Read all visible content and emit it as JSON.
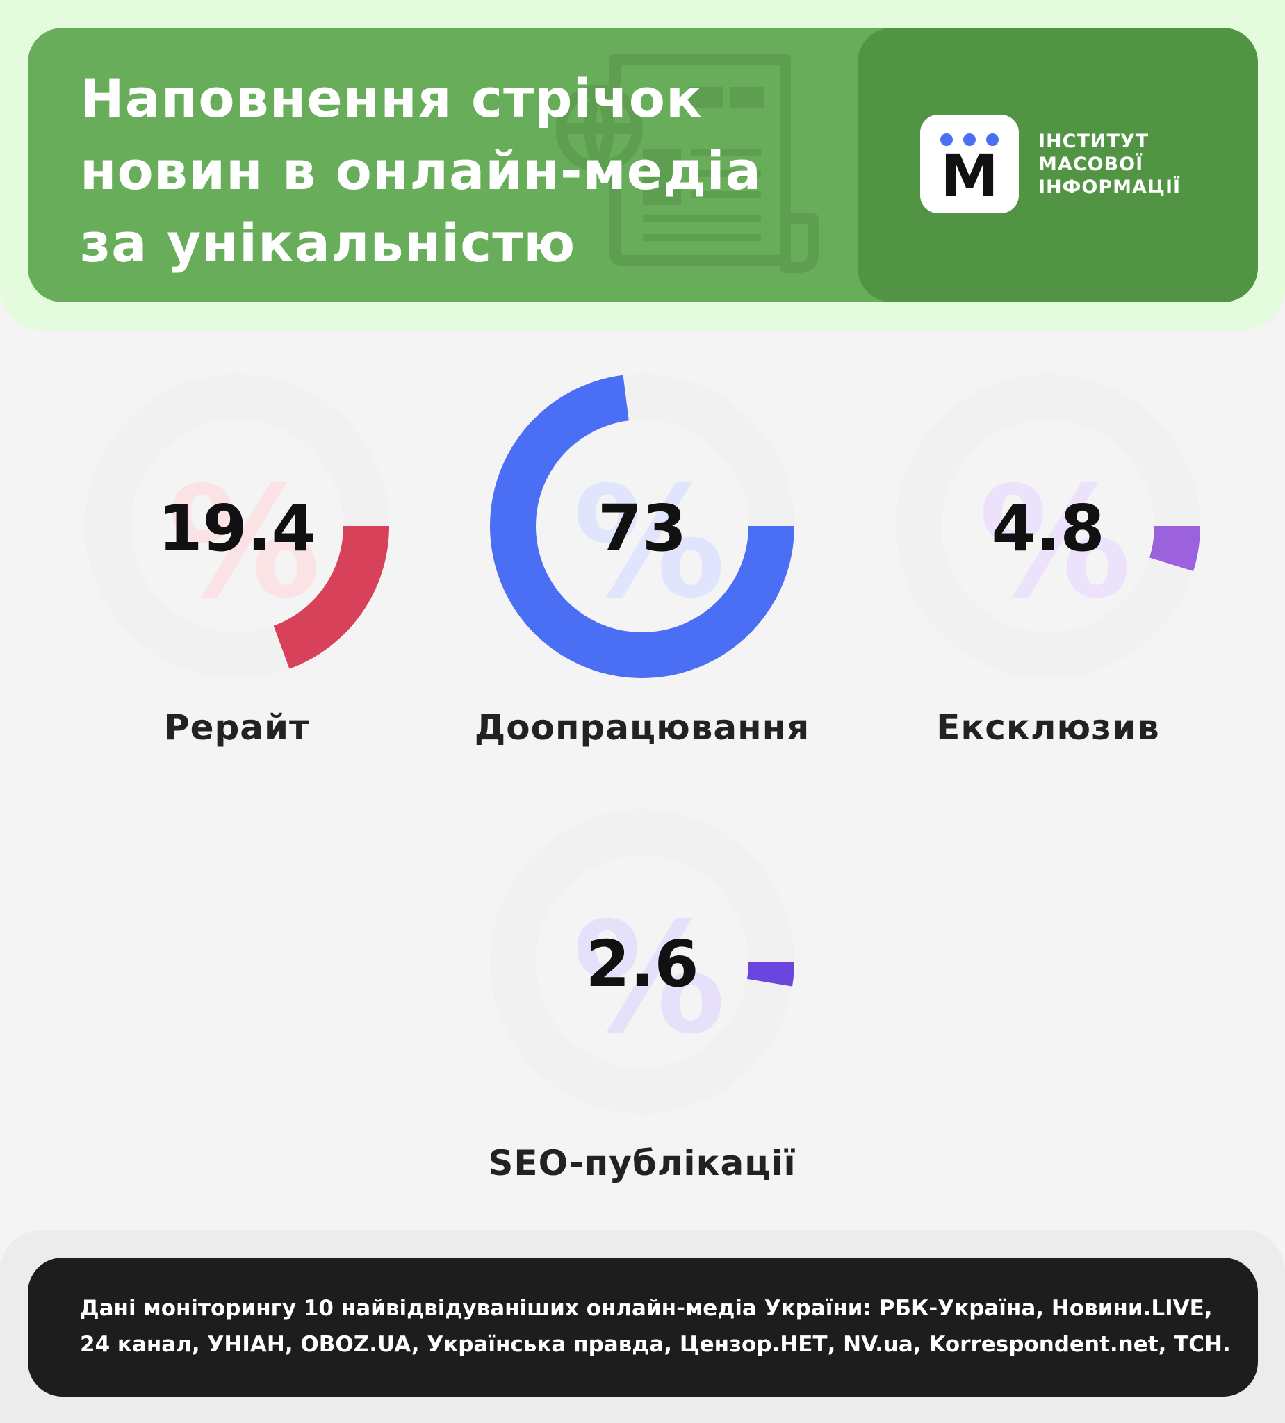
{
  "header": {
    "title_lines": [
      "Наповнення стрічок",
      "новин в онлайн-медіа",
      "за унікальністю"
    ],
    "icon": "newspaper-globe-icon",
    "logo": {
      "mark_letter": "M",
      "name_lines": [
        "ІНСТИТУТ",
        "МАСОВОЇ",
        "ІНФОРМАЦІЇ"
      ]
    }
  },
  "chart_data": {
    "type": "pie",
    "unit": "%",
    "items": [
      {
        "label": "Рерайт",
        "value": 19.4,
        "display": "19.4",
        "color": "#d8415a",
        "watermark_color": "#fbe2e4"
      },
      {
        "label": "Доопрацювання",
        "value": 73,
        "display": "73",
        "color": "#4a6ff5",
        "watermark_color": "#e0e5fd"
      },
      {
        "label": "Ексклюзив",
        "value": 4.8,
        "display": "4.8",
        "color": "#9c62de",
        "watermark_color": "#ece2fb"
      },
      {
        "label": "SEO-публікації",
        "value": 2.6,
        "display": "2.6",
        "color": "#6a45de",
        "watermark_color": "#e6e0fb"
      }
    ],
    "track_color": "#f1f1f1"
  },
  "footer": {
    "note_lines": [
      "Дані моніторингу 10 найвідвідуваніших онлайн-медіа України: РБК-Україна, Новини.LIVE,",
      "24 канал, УНІАН, OBOZ.UA, Українська правда, Цензор.НЕТ, NV.ua, Korrespondent.net, ТСН."
    ]
  }
}
